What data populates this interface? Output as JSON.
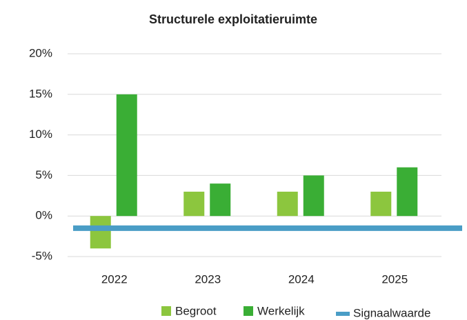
{
  "chart_data": {
    "type": "bar",
    "title": "Structurele exploitatieruimte",
    "categories": [
      "2022",
      "2023",
      "2024",
      "2025"
    ],
    "series": [
      {
        "name": "Begroot",
        "color": "#8cc63e",
        "values": [
          -4,
          3,
          3,
          3
        ]
      },
      {
        "name": "Werkelijk",
        "color": "#3aae35",
        "values": [
          15,
          4,
          5,
          6
        ]
      }
    ],
    "reference_line": {
      "name": "Signaalwaarde",
      "color": "#4a9dc6",
      "value": -1.5
    },
    "ylim": [
      -5,
      20
    ],
    "yticks": [
      {
        "value": -5,
        "label": "-5%"
      },
      {
        "value": 0,
        "label": "0%"
      },
      {
        "value": 5,
        "label": "5%"
      },
      {
        "value": 10,
        "label": "10%"
      },
      {
        "value": 15,
        "label": "15%"
      },
      {
        "value": 20,
        "label": "20%"
      }
    ],
    "grid": true
  }
}
